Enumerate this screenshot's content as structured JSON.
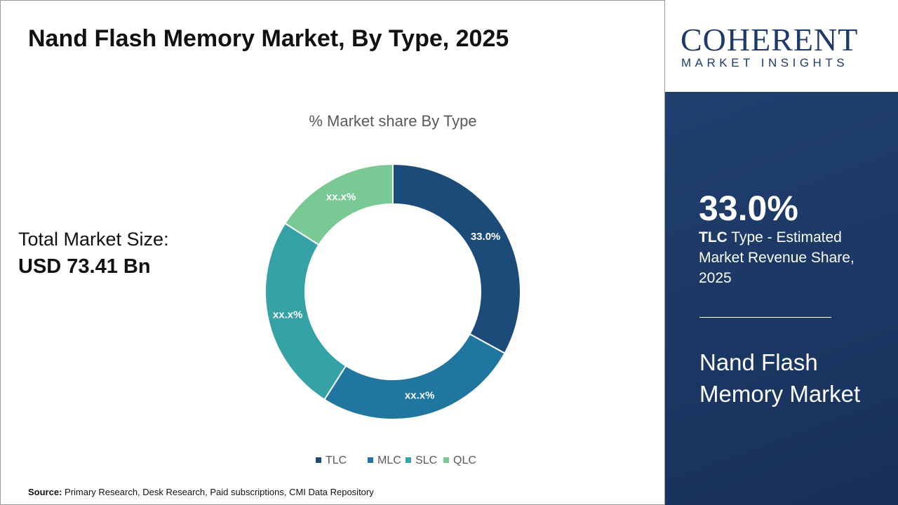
{
  "header": {
    "title": "Nand Flash Memory Market, By Type, 2025"
  },
  "market_size": {
    "label": "Total Market Size:",
    "value": "USD 73.41 Bn"
  },
  "chart_data": {
    "type": "donut",
    "title": "% Market share By Type",
    "categories": [
      "TLC",
      "MLC",
      "SLC",
      "QLC"
    ],
    "values": [
      33.0,
      26,
      25,
      16
    ],
    "value_labels": [
      "33.0%",
      "xx.x%",
      "xx.x%",
      "xx.x%"
    ],
    "colors": [
      "#1b4b78",
      "#1f77a0",
      "#35a2a6",
      "#78c994"
    ],
    "legend": "bottom"
  },
  "highlight": {
    "caption": "Type - Estimated Market Revenue Share, 2025",
    "title": "Nand Flash Memory Market"
  },
  "logo": {
    "name": "COHERENT",
    "tagline": "MARKET INSIGHTS"
  },
  "source": {
    "label": "Source:",
    "text": "Primary Research, Desk Research, Paid subscriptions, CMI Data Repository"
  }
}
